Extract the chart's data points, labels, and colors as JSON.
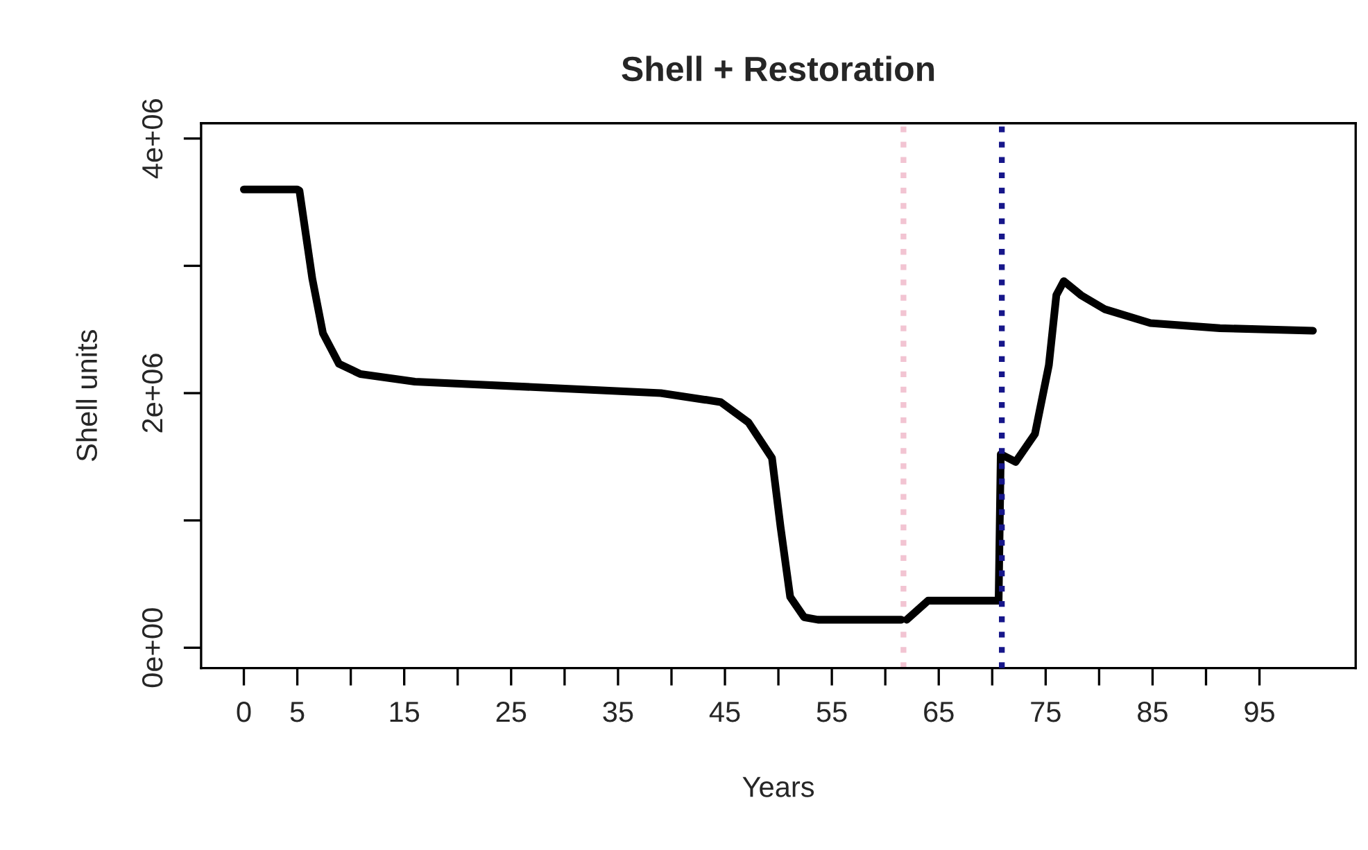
{
  "chart_data": {
    "type": "line",
    "title": "Shell + Restoration",
    "xlabel": "Years",
    "ylabel": "Shell units",
    "x": [
      0,
      5,
      5.2,
      6.4,
      7.4,
      8.9,
      10.9,
      16,
      29,
      39,
      44.6,
      47.2,
      49.4,
      50.2,
      51.1,
      52.4,
      53.7,
      61.5,
      61.7,
      62,
      64,
      70.6,
      70.8,
      72.2,
      74,
      75.3,
      76,
      76.7,
      78.3,
      80.5,
      84.8,
      91.3,
      100
    ],
    "series": [
      {
        "color": "#000000",
        "values": [
          3600000,
          3600000,
          3590000,
          2900000,
          2470000,
          2230000,
          2150000,
          2090000,
          2040000,
          2000000,
          1930000,
          1770000,
          1490000,
          950000,
          400000,
          240000,
          220000,
          220000,
          null,
          220000,
          370000,
          370000,
          1520000,
          1460000,
          1680000,
          2220000,
          2770000,
          2880000,
          2770000,
          2660000,
          2550000,
          2510000,
          2490000
        ]
      }
    ],
    "xlim": [
      -4,
      104
    ],
    "ylim": [
      -160000,
      4120000
    ],
    "xticks": [
      0,
      5,
      {
        "value": 10,
        "label": null
      },
      15,
      {
        "value": 20,
        "label": null
      },
      25,
      {
        "value": 30,
        "label": null
      },
      35,
      {
        "value": 40,
        "label": null
      },
      45,
      {
        "value": 50,
        "label": null
      },
      55,
      {
        "value": 60,
        "label": null
      },
      65,
      {
        "value": 70,
        "label": null
      },
      75,
      {
        "value": 80,
        "label": null
      },
      85,
      {
        "value": 90,
        "label": null
      },
      95
    ],
    "yticks": [
      {
        "value": 0,
        "label": "0e+00"
      },
      {
        "value": 1000000,
        "label": null
      },
      {
        "value": 2000000,
        "label": "2e+06"
      },
      {
        "value": 3000000,
        "label": null
      },
      {
        "value": 4000000,
        "label": "4e+06"
      }
    ],
    "ref_lines": [
      {
        "axis": "x",
        "value": 61.7,
        "color": "#f2c4d2",
        "line_style": "dotted"
      },
      {
        "axis": "x",
        "value": 70.9,
        "color": "#16168a",
        "line_style": "dotted"
      }
    ],
    "grid": false,
    "legend": false,
    "line_style": "solid",
    "marker": "none"
  }
}
